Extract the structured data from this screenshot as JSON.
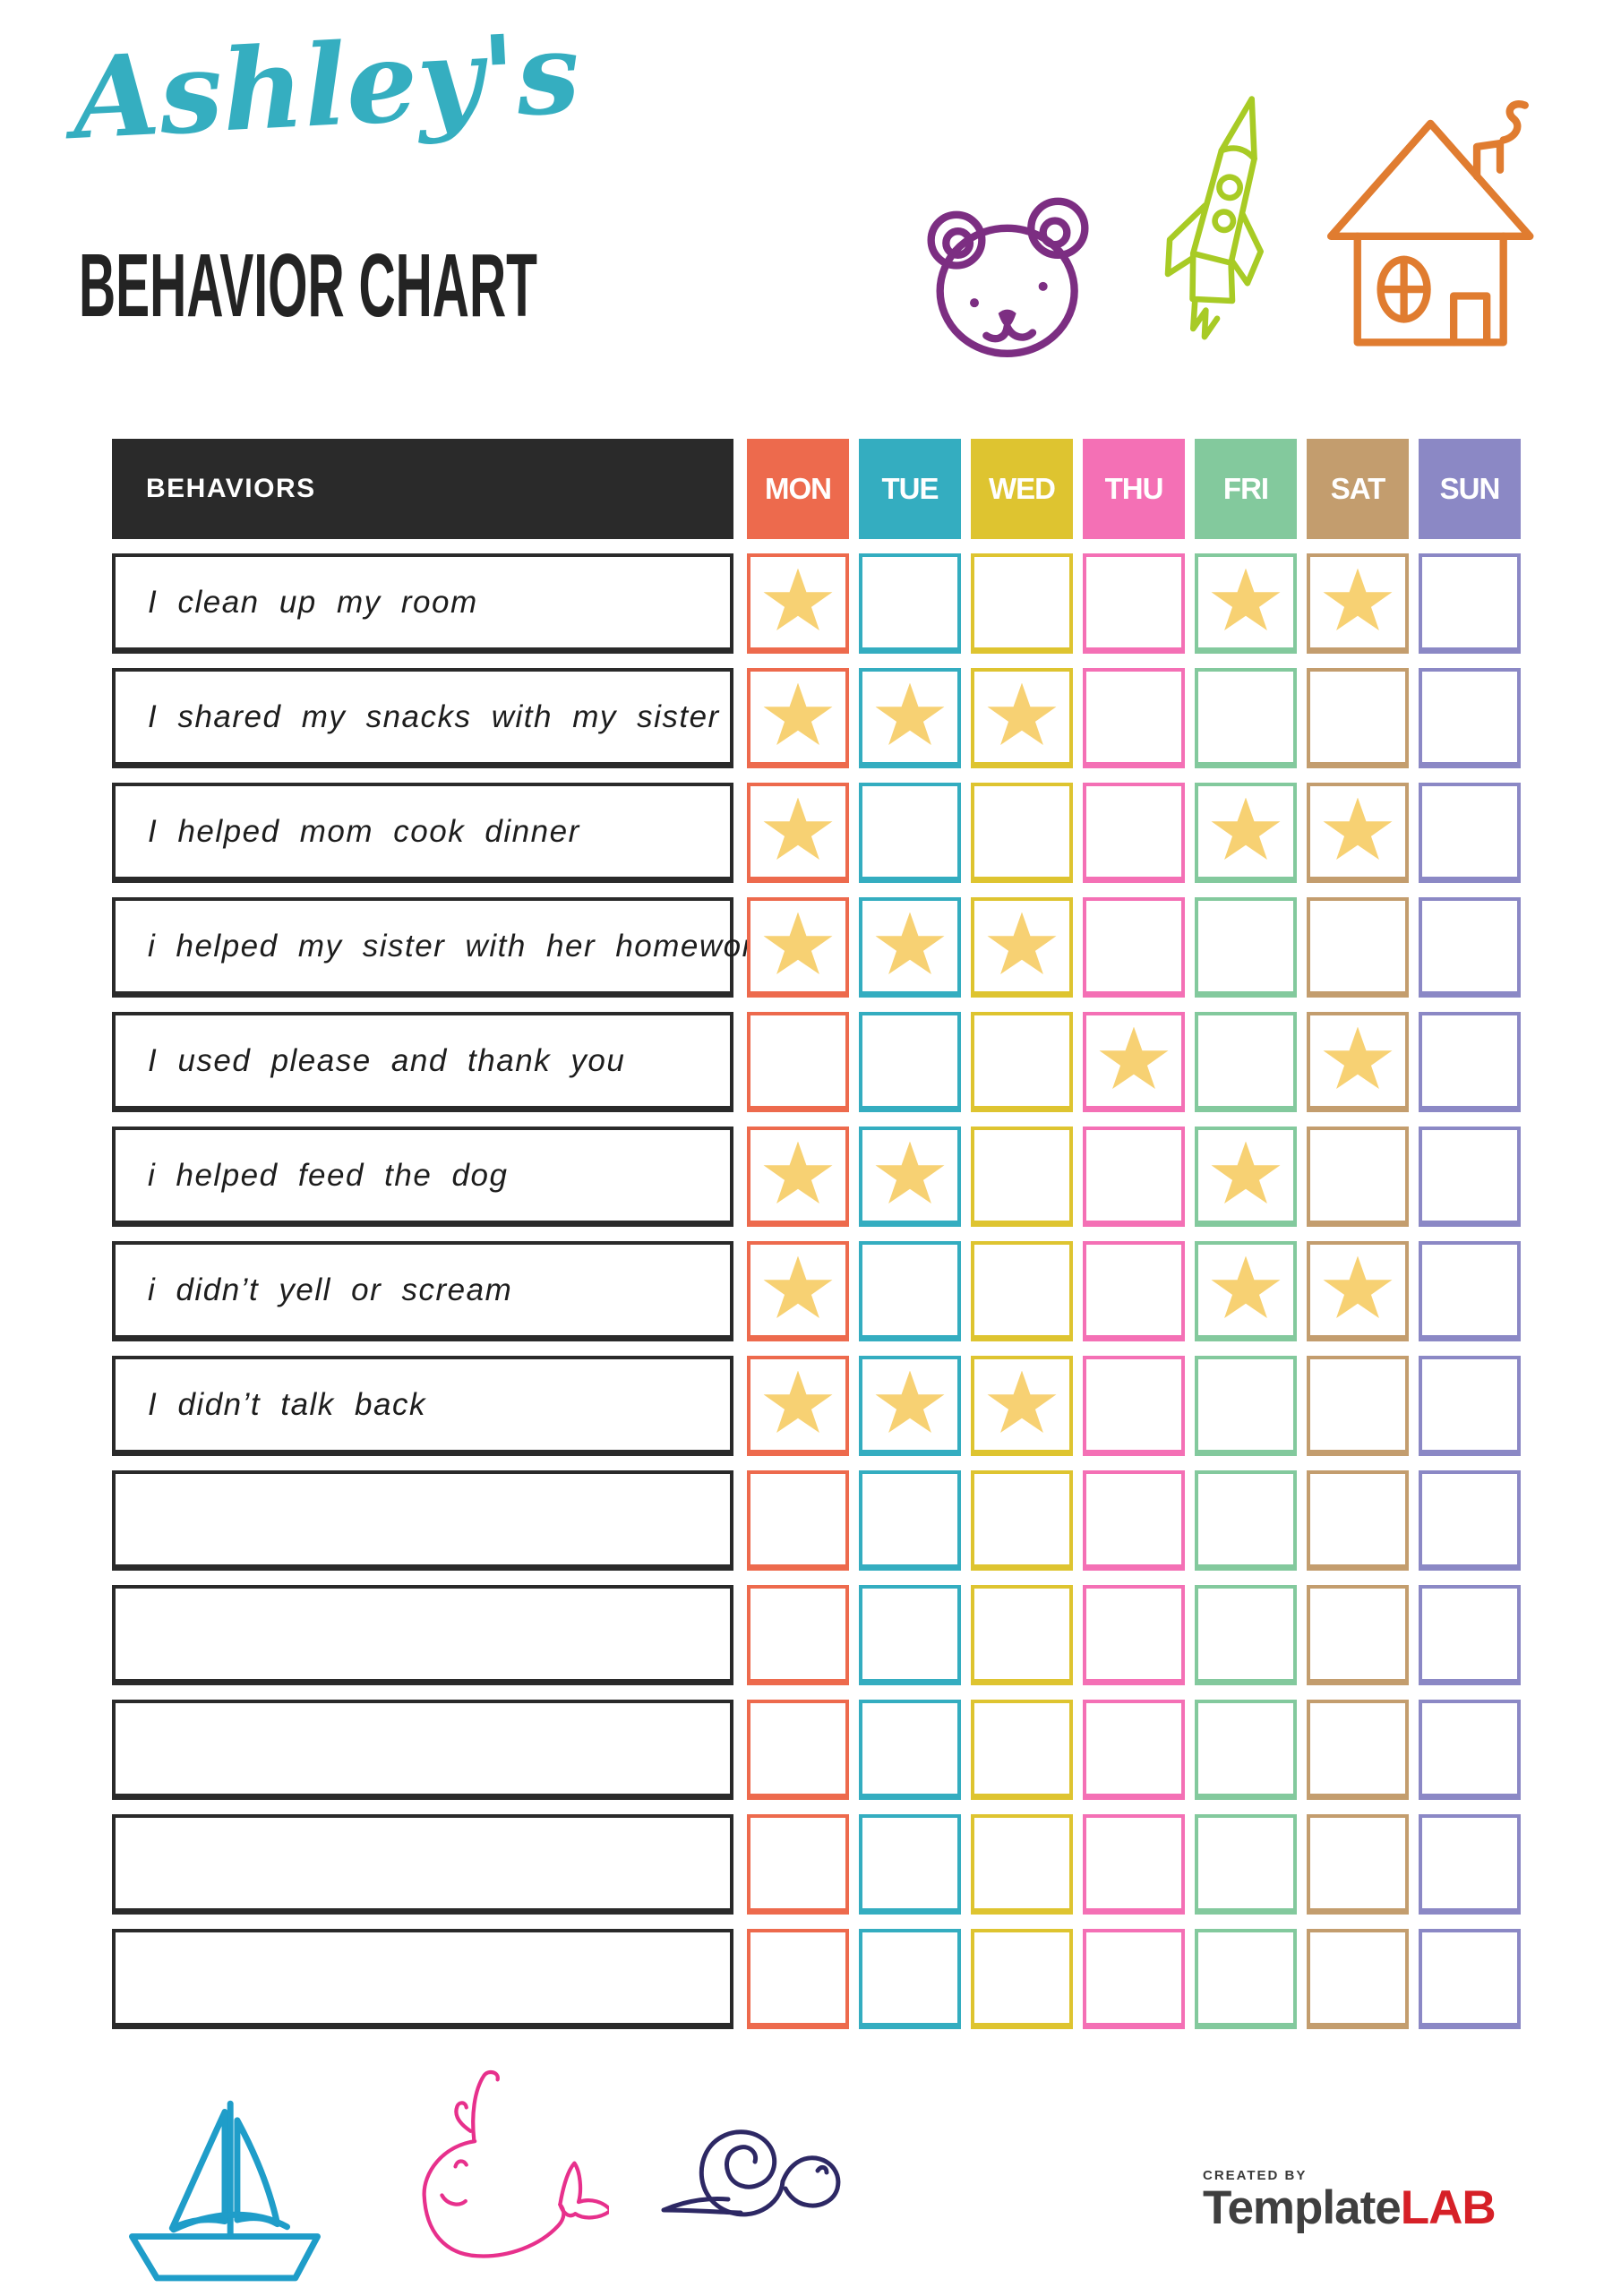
{
  "page": {
    "script_title": "Ashley's",
    "main_title": "BEHAVIOR CHART"
  },
  "table": {
    "behaviors_header": "BEHAVIORS",
    "days": [
      {
        "label": "MON",
        "color": "#ED6A4D"
      },
      {
        "label": "TUE",
        "color": "#34ADC0"
      },
      {
        "label": "WED",
        "color": "#DEC430"
      },
      {
        "label": "THU",
        "color": "#F470B5"
      },
      {
        "label": "FRI",
        "color": "#83C99D"
      },
      {
        "label": "SAT",
        "color": "#C39D6E"
      },
      {
        "label": "SUN",
        "color": "#8B88C5"
      }
    ],
    "rows": [
      {
        "label": "I clean up my room",
        "stars": [
          1,
          0,
          0,
          0,
          1,
          1,
          0
        ]
      },
      {
        "label": "I shared my snacks with my sister",
        "stars": [
          1,
          1,
          1,
          0,
          0,
          0,
          0
        ]
      },
      {
        "label": "I helped mom cook dinner",
        "stars": [
          1,
          0,
          0,
          0,
          1,
          1,
          0
        ]
      },
      {
        "label": "i helped my sister with her homework",
        "stars": [
          1,
          1,
          1,
          0,
          0,
          0,
          0
        ]
      },
      {
        "label": "I used please and thank you",
        "stars": [
          0,
          0,
          0,
          1,
          0,
          1,
          0
        ]
      },
      {
        "label": "i helped feed the dog",
        "stars": [
          1,
          1,
          0,
          0,
          1,
          0,
          0
        ]
      },
      {
        "label": "i didn’t yell or scream",
        "stars": [
          1,
          0,
          0,
          0,
          1,
          1,
          0
        ]
      },
      {
        "label": "I didn’t talk back",
        "stars": [
          1,
          1,
          1,
          0,
          0,
          0,
          0
        ]
      },
      {
        "label": "",
        "stars": [
          0,
          0,
          0,
          0,
          0,
          0,
          0
        ]
      },
      {
        "label": "",
        "stars": [
          0,
          0,
          0,
          0,
          0,
          0,
          0
        ]
      },
      {
        "label": "",
        "stars": [
          0,
          0,
          0,
          0,
          0,
          0,
          0
        ]
      },
      {
        "label": "",
        "stars": [
          0,
          0,
          0,
          0,
          0,
          0,
          0
        ]
      },
      {
        "label": "",
        "stars": [
          0,
          0,
          0,
          0,
          0,
          0,
          0
        ]
      }
    ]
  },
  "icons": {
    "top": [
      "bear-icon",
      "rocket-icon",
      "house-icon"
    ],
    "bottom": [
      "sailboat-icon",
      "whale-icon",
      "snail-icon"
    ]
  },
  "colors": {
    "star": "#F7D173",
    "header_bg": "#2A2A2A",
    "row_border": "#2A2A2A",
    "script_title": "#35AEC0",
    "main_title": "#232323",
    "bear": "#7C2E82",
    "rocket": "#A8CB25",
    "house": "#E07C30",
    "sailboat": "#1F9DC9",
    "whale": "#E7308C",
    "snail": "#2D2864",
    "logo_dark": "#3F3F3F",
    "logo_red": "#D62027"
  },
  "footer": {
    "created_by": "CREATED BY",
    "brand_dark": "Template",
    "brand_red": "LAB"
  }
}
